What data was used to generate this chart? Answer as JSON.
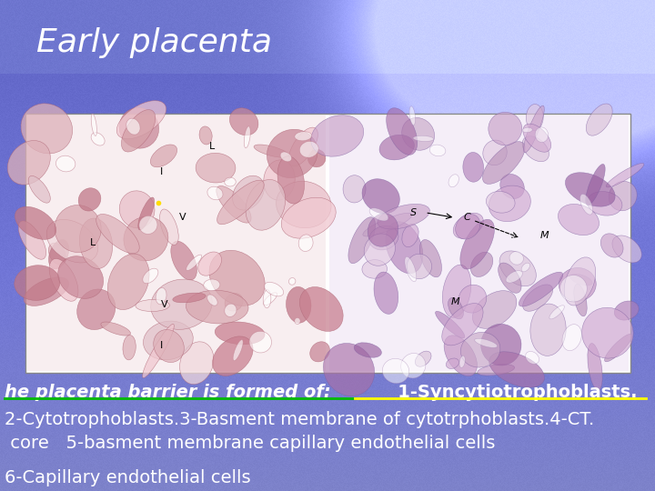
{
  "title": "Early placenta",
  "title_color": "#FFFFFF",
  "title_fontsize": 26,
  "background_color": "#5566BB",
  "text_line1a": "he placenta barrier is formed of:",
  "text_line1b": "       1-Syncytiotrophoblasts.",
  "text_line2": "2-Cytotrophoblasts.3-Basment membrane of cytotrphoblasts.4-CT.",
  "text_line3": " core   5-basment membrane capillary endothelial cells",
  "text_line4": "6-Capillary endothelial cells",
  "text_color": "#FFFFFF",
  "text_fontsize": 14,
  "underline_green": "#00BB00",
  "underline_yellow": "#FFFF00"
}
